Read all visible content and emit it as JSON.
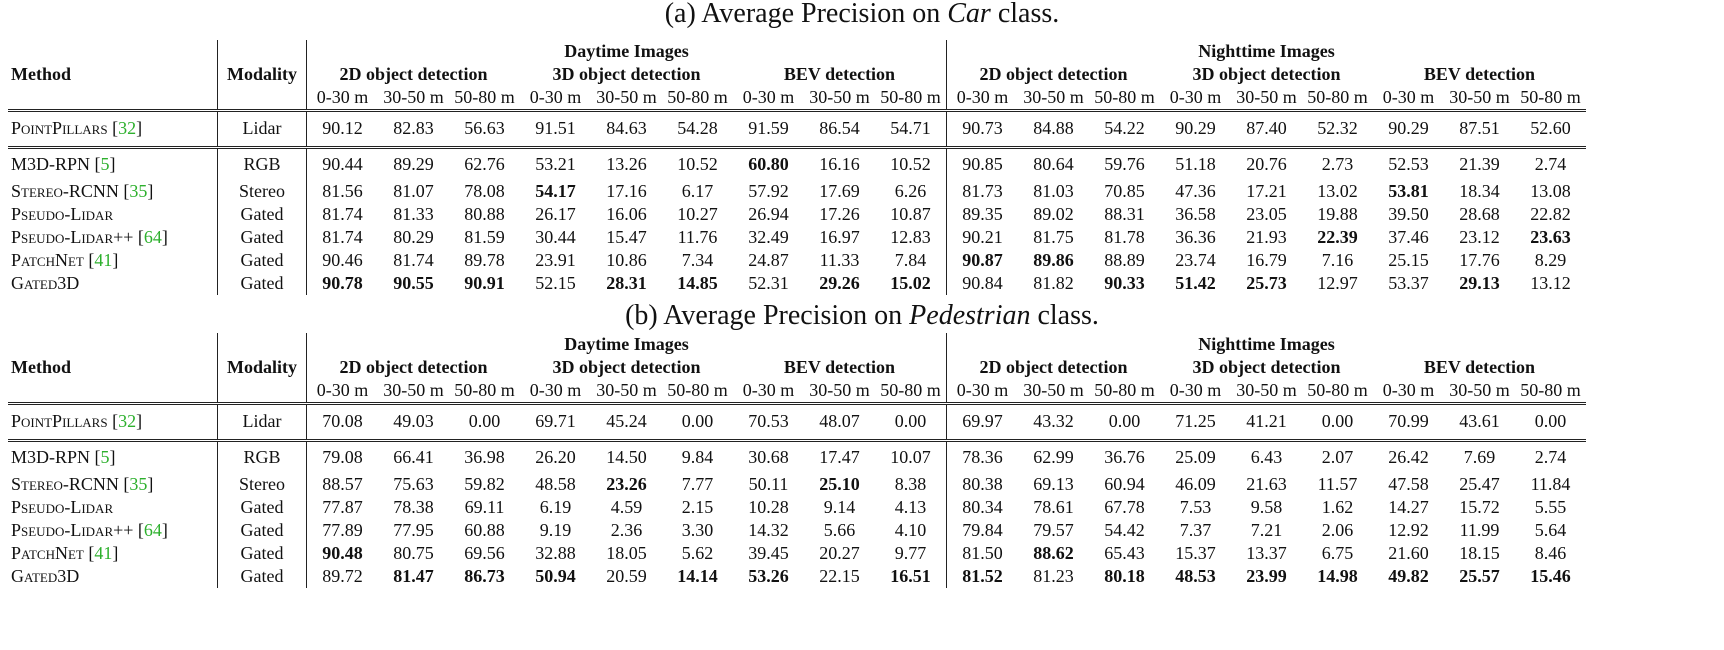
{
  "tables": [
    {
      "caption_prefix": "(a) Average Precision on ",
      "caption_class": "Car",
      "caption_suffix": " class.",
      "header": {
        "method": "Method",
        "modality": "Modality",
        "daytime": "Daytime Images",
        "nighttime": "Nighttime Images",
        "det_2d": "2D object detection",
        "det_3d": "3D object detection",
        "det_bev": "BEV detection",
        "r1": "0-30 m",
        "r2": "30-50 m",
        "r3": "50-80 m"
      },
      "rows": [
        {
          "name": "PointPillars",
          "ref": "32",
          "modality": "Lidar",
          "values": [
            "90.12",
            "82.83",
            "56.63",
            "91.51",
            "84.63",
            "54.28",
            "91.59",
            "86.54",
            "54.71",
            "90.73",
            "84.88",
            "54.22",
            "90.29",
            "87.40",
            "52.32",
            "90.29",
            "87.51",
            "52.60"
          ],
          "bold": []
        },
        {
          "name": "M3D-RPN",
          "ref": "5",
          "modality": "RGB",
          "values": [
            "90.44",
            "89.29",
            "62.76",
            "53.21",
            "13.26",
            "10.52",
            "60.80",
            "16.16",
            "10.52",
            "90.85",
            "80.64",
            "59.76",
            "51.18",
            "20.76",
            "2.73",
            "52.53",
            "21.39",
            "2.74"
          ],
          "bold": [
            6
          ]
        },
        {
          "name": "Stereo-RCNN",
          "ref": "35",
          "modality": "Stereo",
          "values": [
            "81.56",
            "81.07",
            "78.08",
            "54.17",
            "17.16",
            "6.17",
            "57.92",
            "17.69",
            "6.26",
            "81.73",
            "81.03",
            "70.85",
            "47.36",
            "17.21",
            "13.02",
            "53.81",
            "18.34",
            "13.08"
          ],
          "bold": [
            3,
            15
          ]
        },
        {
          "name": "Pseudo-Lidar",
          "ref": "",
          "modality": "Gated",
          "values": [
            "81.74",
            "81.33",
            "80.88",
            "26.17",
            "16.06",
            "10.27",
            "26.94",
            "17.26",
            "10.87",
            "89.35",
            "89.02",
            "88.31",
            "36.58",
            "23.05",
            "19.88",
            "39.50",
            "28.68",
            "22.82"
          ],
          "bold": []
        },
        {
          "name": "Pseudo-Lidar++",
          "ref": "64",
          "modality": "Gated",
          "values": [
            "81.74",
            "80.29",
            "81.59",
            "30.44",
            "15.47",
            "11.76",
            "32.49",
            "16.97",
            "12.83",
            "90.21",
            "81.75",
            "81.78",
            "36.36",
            "21.93",
            "22.39",
            "37.46",
            "23.12",
            "23.63"
          ],
          "bold": [
            14,
            17
          ]
        },
        {
          "name": "PatchNet",
          "ref": "41",
          "modality": "Gated",
          "values": [
            "90.46",
            "81.74",
            "89.78",
            "23.91",
            "10.86",
            "7.34",
            "24.87",
            "11.33",
            "7.84",
            "90.87",
            "89.86",
            "88.89",
            "23.74",
            "16.79",
            "7.16",
            "25.15",
            "17.76",
            "8.29"
          ],
          "bold": [
            9,
            10
          ]
        },
        {
          "name": "Gated3D",
          "ref": "",
          "modality": "Gated",
          "values": [
            "90.78",
            "90.55",
            "90.91",
            "52.15",
            "28.31",
            "14.85",
            "52.31",
            "29.26",
            "15.02",
            "90.84",
            "81.82",
            "90.33",
            "51.42",
            "25.73",
            "12.97",
            "53.37",
            "29.13",
            "13.12"
          ],
          "bold": [
            0,
            1,
            2,
            4,
            5,
            7,
            8,
            11,
            12,
            13,
            16
          ]
        }
      ]
    },
    {
      "caption_prefix": "(b) Average Precision on ",
      "caption_class": "Pedestrian",
      "caption_suffix": " class.",
      "header": {
        "method": "Method",
        "modality": "Modality",
        "daytime": "Daytime Images",
        "nighttime": "Nighttime Images",
        "det_2d": "2D object detection",
        "det_3d": "3D object detection",
        "det_bev": "BEV detection",
        "r1": "0-30 m",
        "r2": "30-50 m",
        "r3": "50-80 m"
      },
      "rows": [
        {
          "name": "PointPillars",
          "ref": "32",
          "modality": "Lidar",
          "values": [
            "70.08",
            "49.03",
            "0.00",
            "69.71",
            "45.24",
            "0.00",
            "70.53",
            "48.07",
            "0.00",
            "69.97",
            "43.32",
            "0.00",
            "71.25",
            "41.21",
            "0.00",
            "70.99",
            "43.61",
            "0.00"
          ],
          "bold": []
        },
        {
          "name": "M3D-RPN",
          "ref": "5",
          "modality": "RGB",
          "values": [
            "79.08",
            "66.41",
            "36.98",
            "26.20",
            "14.50",
            "9.84",
            "30.68",
            "17.47",
            "10.07",
            "78.36",
            "62.99",
            "36.76",
            "25.09",
            "6.43",
            "2.07",
            "26.42",
            "7.69",
            "2.74"
          ],
          "bold": []
        },
        {
          "name": "Stereo-RCNN",
          "ref": "35",
          "modality": "Stereo",
          "values": [
            "88.57",
            "75.63",
            "59.82",
            "48.58",
            "23.26",
            "7.77",
            "50.11",
            "25.10",
            "8.38",
            "80.38",
            "69.13",
            "60.94",
            "46.09",
            "21.63",
            "11.57",
            "47.58",
            "25.47",
            "11.84"
          ],
          "bold": [
            4,
            7
          ]
        },
        {
          "name": "Pseudo-Lidar",
          "ref": "",
          "modality": "Gated",
          "values": [
            "77.87",
            "78.38",
            "69.11",
            "6.19",
            "4.59",
            "2.15",
            "10.28",
            "9.14",
            "4.13",
            "80.34",
            "78.61",
            "67.78",
            "7.53",
            "9.58",
            "1.62",
            "14.27",
            "15.72",
            "5.55"
          ],
          "bold": []
        },
        {
          "name": "Pseudo-Lidar++",
          "ref": "64",
          "modality": "Gated",
          "values": [
            "77.89",
            "77.95",
            "60.88",
            "9.19",
            "2.36",
            "3.30",
            "14.32",
            "5.66",
            "4.10",
            "79.84",
            "79.57",
            "54.42",
            "7.37",
            "7.21",
            "2.06",
            "12.92",
            "11.99",
            "5.64"
          ],
          "bold": []
        },
        {
          "name": "PatchNet",
          "ref": "41",
          "modality": "Gated",
          "values": [
            "90.48",
            "80.75",
            "69.56",
            "32.88",
            "18.05",
            "5.62",
            "39.45",
            "20.27",
            "9.77",
            "81.50",
            "88.62",
            "65.43",
            "15.37",
            "13.37",
            "6.75",
            "21.60",
            "18.15",
            "8.46"
          ],
          "bold": [
            0,
            10
          ]
        },
        {
          "name": "Gated3D",
          "ref": "",
          "modality": "Gated",
          "values": [
            "89.72",
            "81.47",
            "86.73",
            "50.94",
            "20.59",
            "14.14",
            "53.26",
            "22.15",
            "16.51",
            "81.52",
            "81.23",
            "80.18",
            "48.53",
            "23.99",
            "14.98",
            "49.82",
            "25.57",
            "15.46"
          ],
          "bold": [
            1,
            2,
            3,
            5,
            6,
            8,
            9,
            11,
            12,
            13,
            14,
            15,
            16,
            17
          ]
        }
      ]
    }
  ]
}
